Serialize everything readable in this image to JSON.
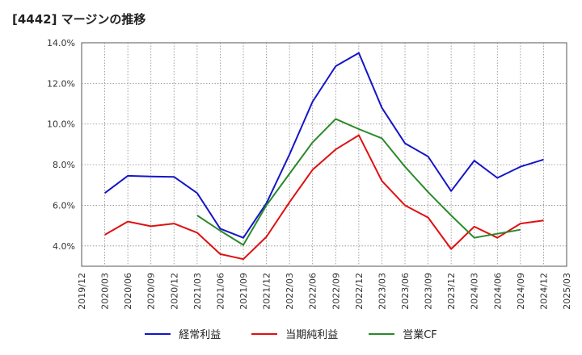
{
  "title": "[4442]  マージンの推移",
  "colors": {
    "series0": "#1515c8",
    "series1": "#e01010",
    "series2": "#2a8a2a"
  },
  "chart_data": {
    "type": "line",
    "x": [
      "2019/12",
      "2020/03",
      "2020/06",
      "2020/09",
      "2020/12",
      "2021/03",
      "2021/06",
      "2021/09",
      "2021/12",
      "2022/03",
      "2022/06",
      "2022/09",
      "2022/12",
      "2023/03",
      "2023/06",
      "2023/09",
      "2023/12",
      "2024/03",
      "2024/06",
      "2024/09",
      "2024/12",
      "2025/03"
    ],
    "ylim": [
      3.0,
      14.0
    ],
    "yticks": [
      4.0,
      6.0,
      8.0,
      10.0,
      12.0,
      14.0
    ],
    "ytick_labels": [
      "4.0%",
      "6.0%",
      "8.0%",
      "10.0%",
      "12.0%",
      "14.0%"
    ],
    "grid": true,
    "legend_position": "bottom",
    "series": [
      {
        "name": "経常利益",
        "color": "#1515c8",
        "values": [
          null,
          6.6,
          7.45,
          7.42,
          7.4,
          6.6,
          4.85,
          4.4,
          6.1,
          8.5,
          11.1,
          12.85,
          13.5,
          10.8,
          9.05,
          8.4,
          6.7,
          8.2,
          7.35,
          7.9,
          8.25,
          null
        ]
      },
      {
        "name": "当期純利益",
        "color": "#e01010",
        "values": [
          null,
          4.55,
          5.2,
          4.97,
          5.1,
          4.65,
          3.6,
          3.35,
          4.45,
          6.15,
          7.75,
          8.75,
          9.45,
          7.2,
          6.0,
          5.4,
          3.85,
          4.95,
          4.4,
          5.1,
          5.25,
          null
        ]
      },
      {
        "name": "営業CF",
        "color": "#2a8a2a",
        "values": [
          null,
          null,
          null,
          null,
          null,
          5.5,
          4.75,
          4.05,
          6.0,
          7.55,
          9.1,
          10.25,
          9.75,
          9.3,
          7.9,
          6.65,
          5.5,
          4.4,
          4.6,
          4.8,
          null,
          null
        ]
      }
    ]
  }
}
